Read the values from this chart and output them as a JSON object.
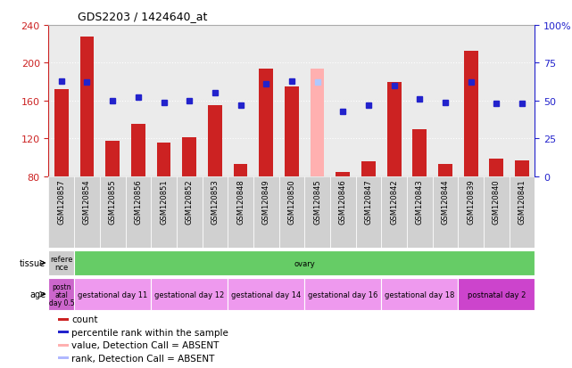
{
  "title": "GDS2203 / 1424640_at",
  "samples": [
    "GSM120857",
    "GSM120854",
    "GSM120855",
    "GSM120856",
    "GSM120851",
    "GSM120852",
    "GSM120853",
    "GSM120848",
    "GSM120849",
    "GSM120850",
    "GSM120845",
    "GSM120846",
    "GSM120847",
    "GSM120842",
    "GSM120843",
    "GSM120844",
    "GSM120839",
    "GSM120840",
    "GSM120841"
  ],
  "counts": [
    172,
    228,
    117,
    135,
    116,
    121,
    155,
    93,
    194,
    175,
    194,
    84,
    96,
    180,
    130,
    93,
    213,
    99,
    97
  ],
  "counts_absent": [
    false,
    false,
    false,
    false,
    false,
    false,
    false,
    false,
    false,
    false,
    true,
    false,
    false,
    false,
    false,
    false,
    false,
    false,
    false
  ],
  "percentile_ranks": [
    63,
    62,
    50,
    52,
    49,
    50,
    55,
    47,
    61,
    63,
    62,
    43,
    47,
    60,
    51,
    49,
    62,
    48,
    48
  ],
  "rank_absent": [
    false,
    false,
    false,
    false,
    false,
    false,
    false,
    false,
    false,
    false,
    true,
    false,
    false,
    false,
    false,
    false,
    false,
    false,
    false
  ],
  "ylim_left": [
    80,
    240
  ],
  "ylim_right": [
    0,
    100
  ],
  "yticks_left": [
    80,
    120,
    160,
    200,
    240
  ],
  "yticks_right": [
    0,
    25,
    50,
    75,
    100
  ],
  "ytick_labels_right": [
    "0",
    "25",
    "50",
    "75",
    "100%"
  ],
  "bar_color_normal": "#cc2222",
  "bar_color_absent": "#ffb0b0",
  "dot_color_normal": "#2222cc",
  "dot_color_absent": "#b0c8ff",
  "bar_width": 0.55,
  "tissue_items": [
    {
      "text": "refere\nnce",
      "color": "#cccccc",
      "span": 1
    },
    {
      "text": "ovary",
      "color": "#66cc66",
      "span": 18
    }
  ],
  "age_items": [
    {
      "text": "postn\natal\nday 0.5",
      "color": "#cc66cc",
      "span": 1
    },
    {
      "text": "gestational day 11",
      "color": "#ee99ee",
      "span": 3
    },
    {
      "text": "gestational day 12",
      "color": "#ee99ee",
      "span": 3
    },
    {
      "text": "gestational day 14",
      "color": "#ee99ee",
      "span": 3
    },
    {
      "text": "gestational day 16",
      "color": "#ee99ee",
      "span": 3
    },
    {
      "text": "gestational day 18",
      "color": "#ee99ee",
      "span": 3
    },
    {
      "text": "postnatal day 2",
      "color": "#cc44cc",
      "span": 3
    }
  ],
  "legend_items": [
    {
      "color": "#cc2222",
      "label": "count",
      "marker": "square"
    },
    {
      "color": "#2222cc",
      "label": "percentile rank within the sample",
      "marker": "square"
    },
    {
      "color": "#ffb0b0",
      "label": "value, Detection Call = ABSENT",
      "marker": "square"
    },
    {
      "color": "#b0b8ff",
      "label": "rank, Detection Call = ABSENT",
      "marker": "square"
    }
  ],
  "axis_color_left": "#cc2222",
  "axis_color_right": "#2222cc",
  "plot_bg_color": "#ebebeb",
  "grid_color": "white",
  "grid_yticks": [
    120,
    160,
    200
  ]
}
